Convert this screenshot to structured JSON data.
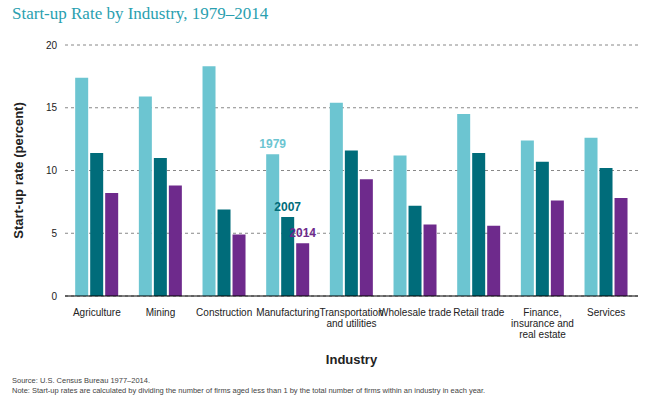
{
  "chart_data": {
    "type": "bar",
    "title": "Start-up Rate by Industry, 1979–2014",
    "x_label": "Industry",
    "y_label": "Start-up rate (percent)",
    "categories": [
      "Agriculture",
      "Mining",
      "Construction",
      "Manufacturing",
      "Transportation and utilities",
      "Wholesale trade",
      "Retail trade",
      "Finance, insurance and real estate",
      "Services"
    ],
    "series": [
      {
        "name": "1979",
        "color": "#6cc5d1",
        "values": [
          17.4,
          15.9,
          18.3,
          11.3,
          15.4,
          11.2,
          14.5,
          12.4,
          12.6
        ]
      },
      {
        "name": "2007",
        "color": "#006c7a",
        "values": [
          11.4,
          11.0,
          6.9,
          6.3,
          11.6,
          7.2,
          11.4,
          10.7,
          10.2
        ]
      },
      {
        "name": "2014",
        "color": "#6e2a8c",
        "values": [
          8.2,
          8.8,
          4.9,
          4.2,
          9.3,
          5.7,
          5.6,
          7.6,
          7.8
        ]
      }
    ],
    "ylim": [
      0,
      20
    ],
    "yticks": [
      0,
      5,
      10,
      15,
      20
    ],
    "grid": true,
    "source": "Source: U.S. Census Bureau 1977–2014.",
    "note": "Note: Start-up rates are calculated by dividing the number of firms aged less than 1 by the total number of firms within an industry in each year."
  }
}
